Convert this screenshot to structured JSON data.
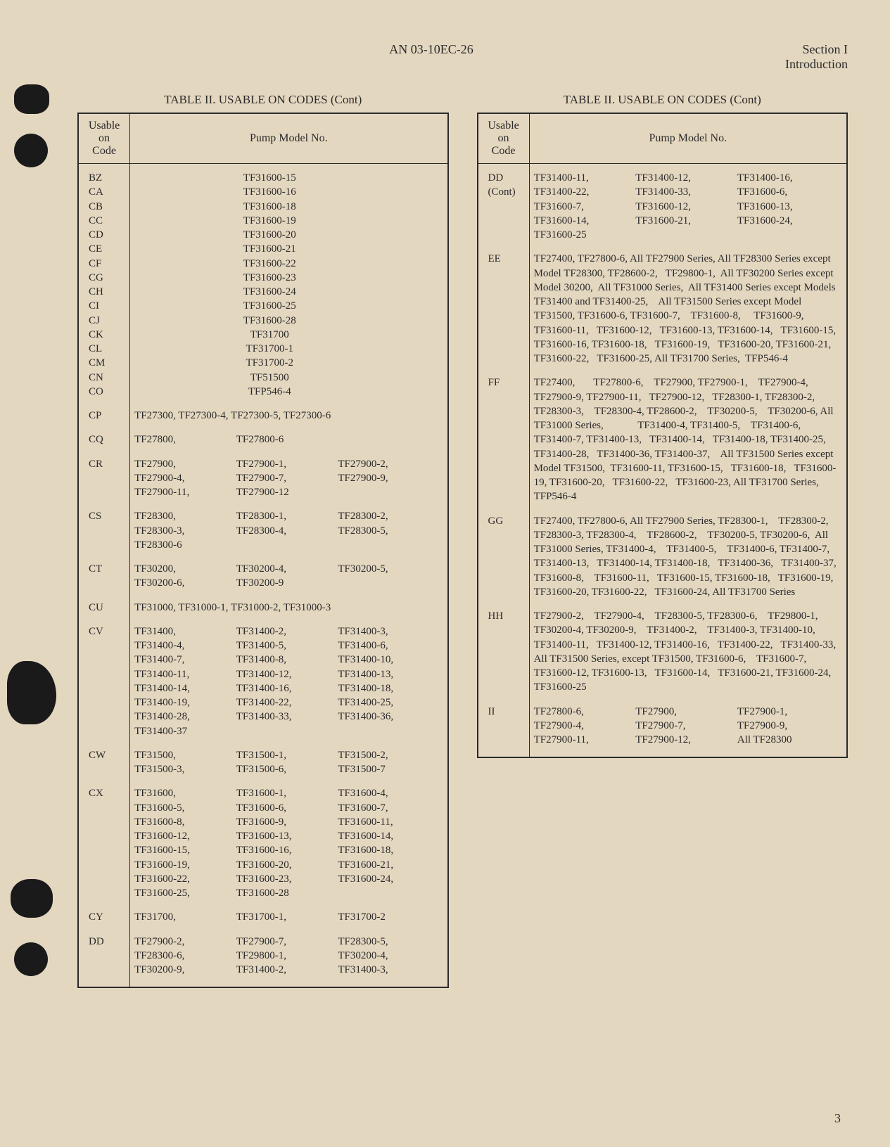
{
  "doc_number": "AN 03-10EC-26",
  "section": "Section I",
  "subsection": "Introduction",
  "page_number": "3",
  "table_title": "TABLE II.  USABLE ON CODES (Cont)",
  "col_headers": {
    "code": "Usable\non\nCode",
    "pump": "Pump Model No."
  },
  "left_simple": [
    {
      "c": "BZ",
      "m": "TF31600-15"
    },
    {
      "c": "CA",
      "m": "TF31600-16"
    },
    {
      "c": "CB",
      "m": "TF31600-18"
    },
    {
      "c": "CC",
      "m": "TF31600-19"
    },
    {
      "c": "CD",
      "m": "TF31600-20"
    },
    {
      "c": "CE",
      "m": "TF31600-21"
    },
    {
      "c": "CF",
      "m": "TF31600-22"
    },
    {
      "c": "CG",
      "m": "TF31600-23"
    },
    {
      "c": "CH",
      "m": "TF31600-24"
    },
    {
      "c": "CI",
      "m": "TF31600-25"
    },
    {
      "c": "CJ",
      "m": "TF31600-28"
    },
    {
      "c": "CK",
      "m": "TF31700"
    },
    {
      "c": "CL",
      "m": "TF31700-1"
    },
    {
      "c": "CM",
      "m": "TF31700-2"
    },
    {
      "c": "CN",
      "m": "TF51500"
    },
    {
      "c": "CO",
      "m": "TFP546-4"
    }
  ],
  "left_multi": [
    {
      "c": "CP",
      "m": [
        "TF27300, TF27300-4, TF27300-5, TF27300-6"
      ],
      "full": true
    },
    {
      "c": "CQ",
      "m": [
        "TF27800,",
        "TF27800-6"
      ]
    },
    {
      "c": "CR",
      "m": [
        "TF27900,",
        "TF27900-1,",
        "TF27900-2,",
        "TF27900-4,",
        "TF27900-7,",
        "TF27900-9,",
        "TF27900-11,",
        "TF27900-12"
      ]
    },
    {
      "c": "CS",
      "m": [
        "TF28300,",
        "TF28300-1,",
        "TF28300-2,",
        "TF28300-3,",
        "TF28300-4,",
        "TF28300-5,",
        "TF28300-6"
      ]
    },
    {
      "c": "CT",
      "m": [
        "TF30200,",
        "TF30200-4,",
        "TF30200-5,",
        "TF30200-6,",
        "TF30200-9"
      ]
    },
    {
      "c": "CU",
      "m": [
        "TF31000, TF31000-1, TF31000-2, TF31000-3"
      ],
      "full": true
    },
    {
      "c": "CV",
      "m": [
        "TF31400,",
        "TF31400-2,",
        "TF31400-3,",
        "TF31400-4,",
        "TF31400-5,",
        "TF31400-6,",
        "TF31400-7,",
        "TF31400-8,",
        "TF31400-10,",
        "TF31400-11,",
        "TF31400-12,",
        "TF31400-13,",
        "TF31400-14,",
        "TF31400-16,",
        "TF31400-18,",
        "TF31400-19,",
        "TF31400-22,",
        "TF31400-25,",
        "TF31400-28,",
        "TF31400-33,",
        "TF31400-36,",
        "TF31400-37"
      ]
    },
    {
      "c": "CW",
      "m": [
        "TF31500,",
        "TF31500-1,",
        "TF31500-2,",
        "TF31500-3,",
        "TF31500-6,",
        "TF31500-7"
      ]
    },
    {
      "c": "CX",
      "m": [
        "TF31600,",
        "TF31600-1,",
        "TF31600-4,",
        "TF31600-5,",
        "TF31600-6,",
        "TF31600-7,",
        "TF31600-8,",
        "TF31600-9,",
        "TF31600-11,",
        "TF31600-12,",
        "TF31600-13,",
        "TF31600-14,",
        "TF31600-15,",
        "TF31600-16,",
        "TF31600-18,",
        "TF31600-19,",
        "TF31600-20,",
        "TF31600-21,",
        "TF31600-22,",
        "TF31600-23,",
        "TF31600-24,",
        "TF31600-25,",
        "TF31600-28"
      ]
    },
    {
      "c": "CY",
      "m": [
        "TF31700,",
        "TF31700-1,",
        "TF31700-2"
      ]
    },
    {
      "c": "DD",
      "m": [
        "TF27900-2,",
        "TF27900-7,",
        "TF28300-5,",
        "TF28300-6,",
        "TF29800-1,",
        "TF30200-4,",
        "TF30200-9,",
        "TF31400-2,",
        "TF31400-3,"
      ]
    }
  ],
  "right_multi": [
    {
      "c": "DD",
      "c2": "(Cont)",
      "m": [
        "TF31400-11,",
        "TF31400-12,",
        "TF31400-16,",
        "TF31400-22,",
        "TF31400-33,",
        "TF31600-6,",
        "TF31600-7,",
        "TF31600-12,",
        "TF31600-13,",
        "TF31600-14,",
        "TF31600-21,",
        "TF31600-24,",
        "TF31600-25"
      ]
    },
    {
      "c": "EE",
      "text": "TF27400, TF27800-6, All TF27900 Series, All TF28300 Series except Model TF28300, TF28600-2,   TF29800-1,  All TF30200 Series except Model 30200,  All TF31000 Series,  All TF31400 Series except Models TF31400 and TF31400-25,    All TF31500 Series except Model TF31500, TF31600-6, TF31600-7,    TF31600-8,     TF31600-9, TF31600-11,   TF31600-12,   TF31600-13, TF31600-14,   TF31600-15,   TF31600-16, TF31600-18,   TF31600-19,   TF31600-20, TF31600-21,   TF31600-22,   TF31600-25, All TF31700 Series,  TFP546-4"
    },
    {
      "c": "FF",
      "text": "TF27400,       TF27800-6,    TF27900, TF27900-1,    TF27900-4,    TF27900-9, TF27900-11,   TF27900-12,   TF28300-1, TF28300-2,    TF28300-3,    TF28300-4, TF28600-2,    TF30200-5,    TF30200-6, All TF31000 Series,             TF31400-4, TF31400-5,    TF31400-6,    TF31400-7, TF31400-13,   TF31400-14,   TF31400-18, TF31400-25,   TF31400-28,   TF31400-36, TF31400-37,    All TF31500 Series except Model TF31500,  TF31600-11, TF31600-15,   TF31600-18,   TF31600-19, TF31600-20,   TF31600-22,   TF31600-23, All TF31700 Series,  TFP546-4"
    },
    {
      "c": "GG",
      "text": "TF27400, TF27800-6, All TF27900 Series, TF28300-1,    TF28300-2,    TF28300-3, TF28300-4,    TF28600-2,    TF30200-5, TF30200-6,  All TF31000 Series, TF31400-4,    TF31400-5,    TF31400-6, TF31400-7,    TF31400-13,   TF31400-14, TF31400-18,   TF31400-36,   TF31400-37, TF31600-8,    TF31600-11,   TF31600-15, TF31600-18,   TF31600-19,   TF31600-20, TF31600-22,   TF31600-24, All TF31700 Series"
    },
    {
      "c": "HH",
      "text": "TF27900-2,    TF27900-4,    TF28300-5, TF28300-6,    TF29800-1,    TF30200-4, TF30200-9,    TF31400-2,    TF31400-3, TF31400-10,   TF31400-11,   TF31400-12, TF31400-16,   TF31400-22,   TF31400-33, All TF31500 Series, except TF31500, TF31600-6,    TF31600-7,    TF31600-12, TF31600-13,   TF31600-14,   TF31600-21, TF31600-24,   TF31600-25"
    },
    {
      "c": "II",
      "m": [
        "TF27800-6,",
        "TF27900,",
        "TF27900-1,",
        "TF27900-4,",
        "TF27900-7,",
        "TF27900-9,",
        "TF27900-11,",
        "TF27900-12,",
        "All TF28300"
      ]
    }
  ]
}
